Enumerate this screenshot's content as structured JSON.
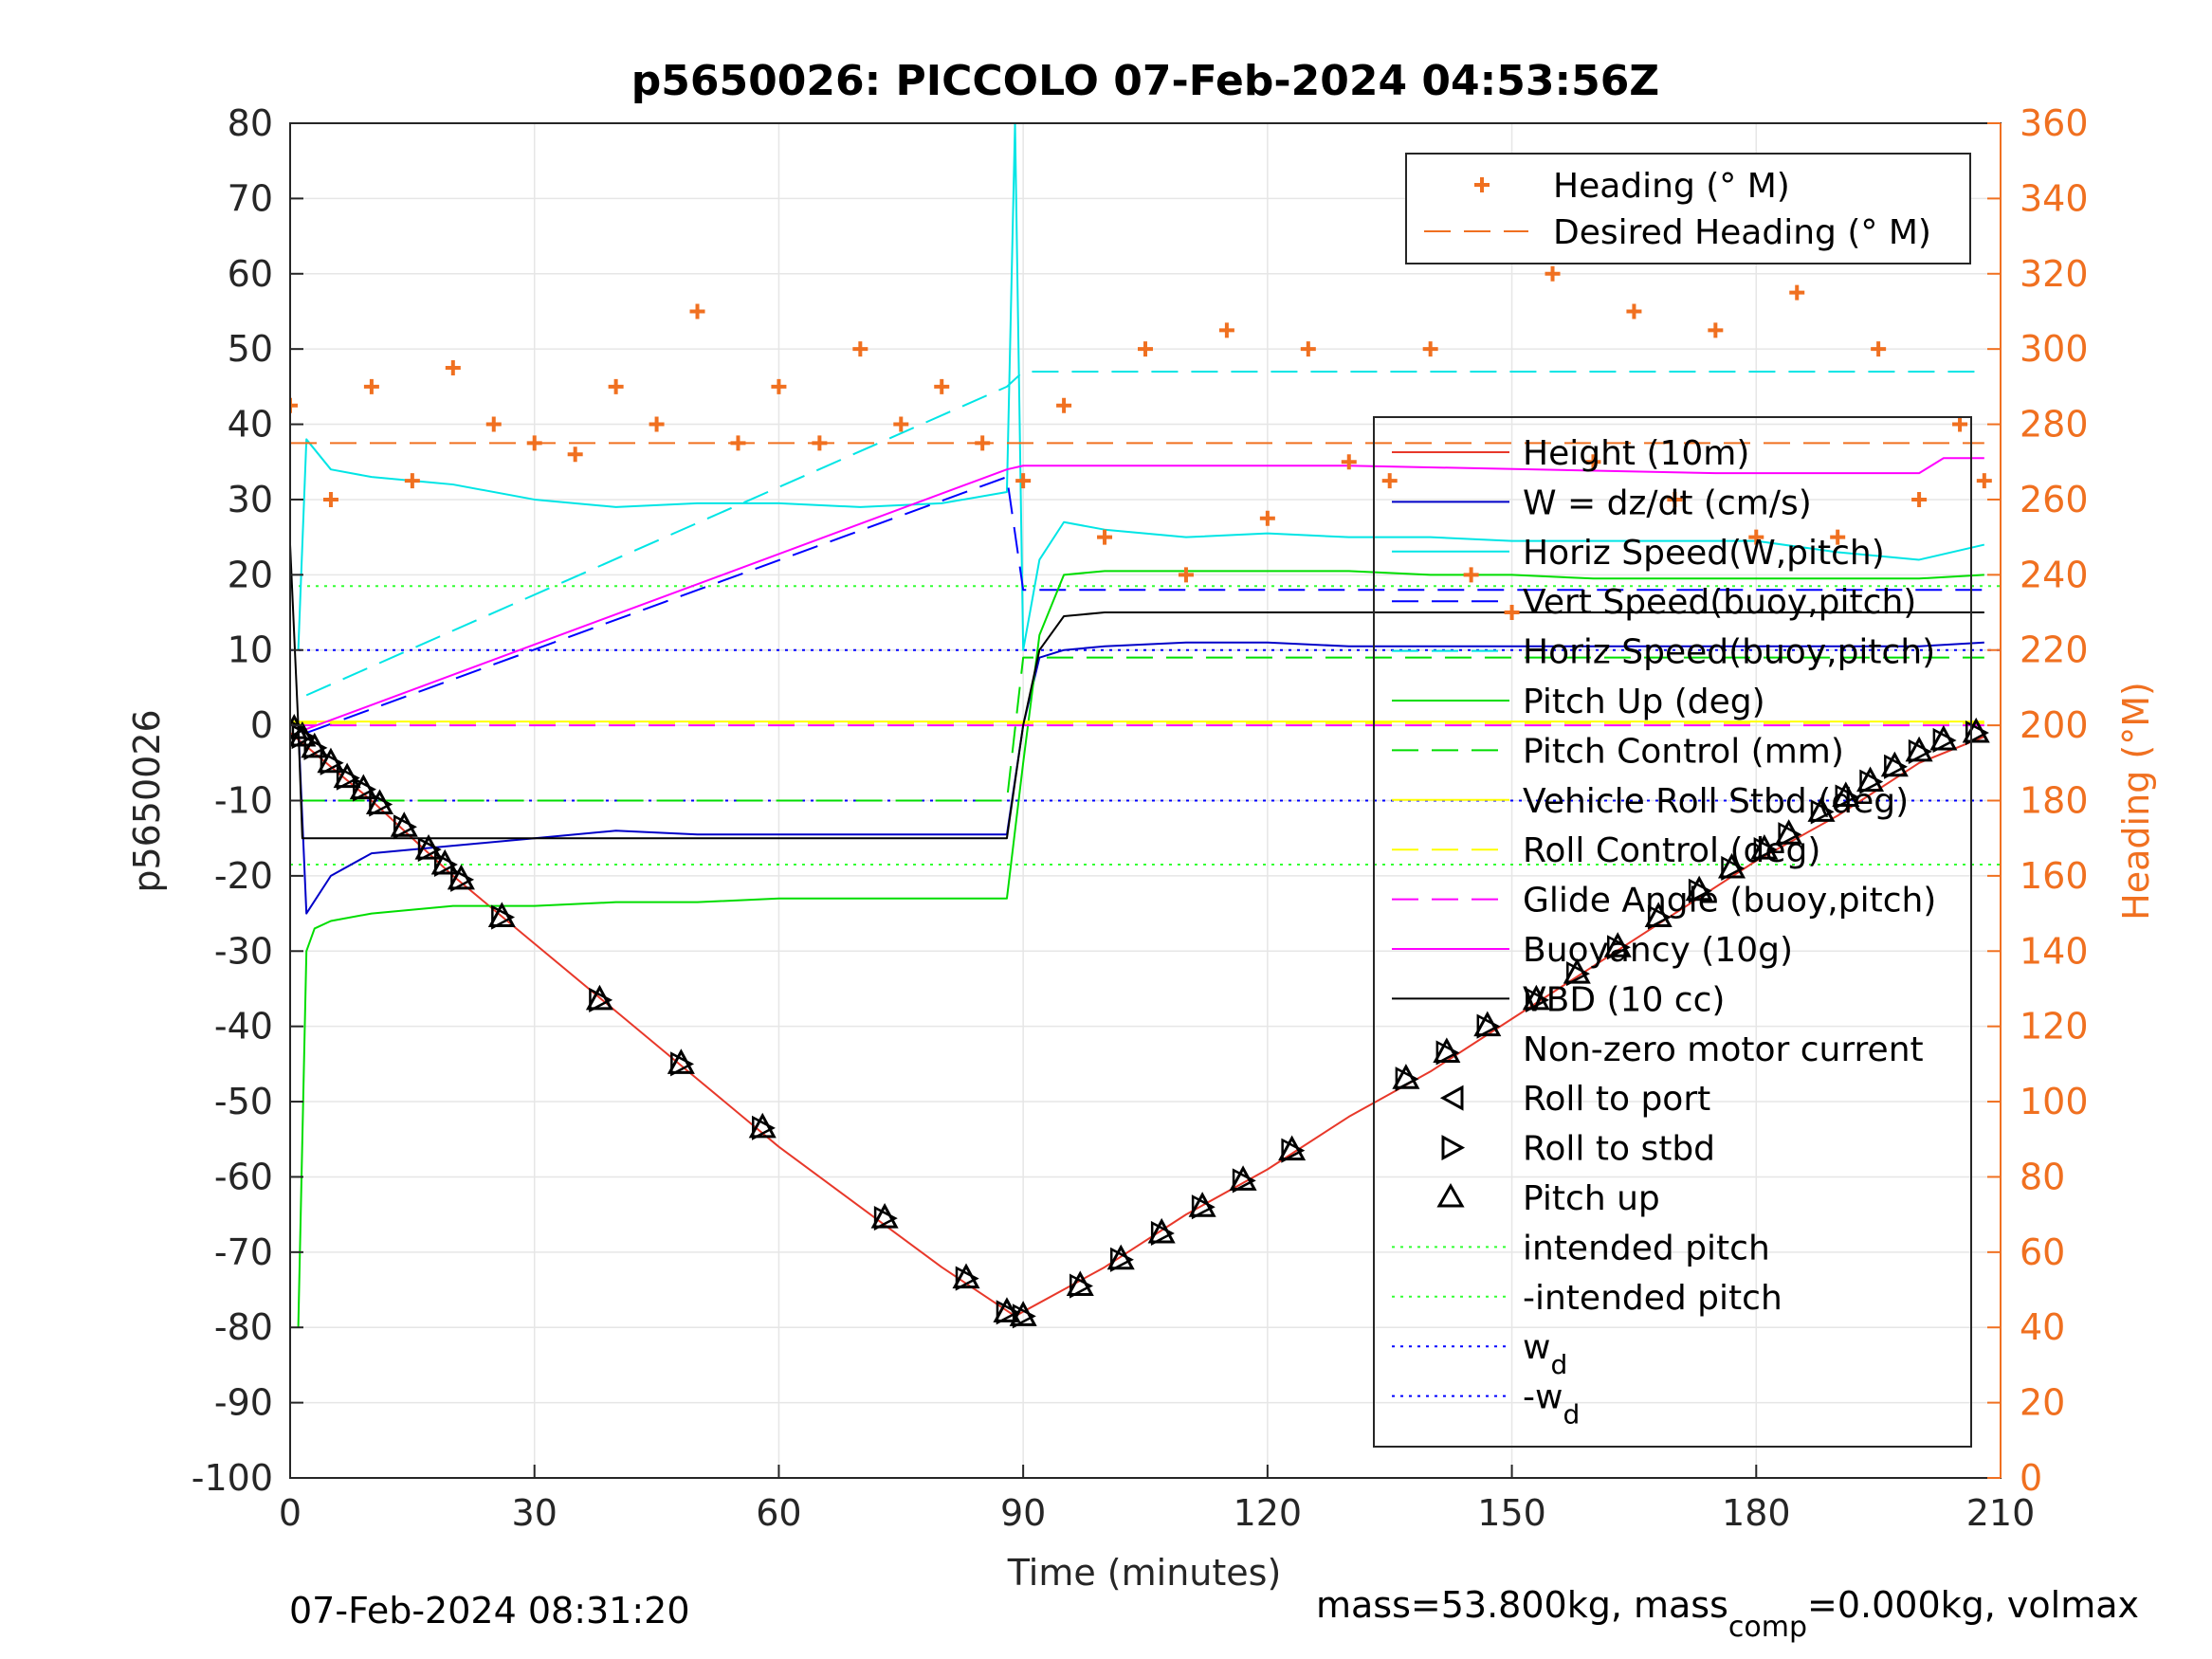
{
  "figure": {
    "timestamp": "07-Feb-2024 08:31:20",
    "mass_text_main": "mass=53.800kg, mass",
    "mass_text_sub": "comp",
    "mass_text_tail": "=0.000kg, volmax"
  },
  "colors": {
    "height": "#e8382a",
    "w": "#0000c8",
    "hspeed": "#00e5e5",
    "vert_speed": "#0000ff",
    "pitch": "#00dd00",
    "roll": "#ffff00",
    "glide": "#ff00ff",
    "buoyancy": "#ff00ff",
    "vbd": "#000000",
    "heading": "#f07020",
    "wd": "#0000ff",
    "intended": "#33ff33"
  },
  "chart_data": {
    "type": "line",
    "title": "p5650026: PICCOLO 07-Feb-2024 04:53:56Z",
    "xlabel": "Time (minutes)",
    "ylabel": "p5650026",
    "ylabel_right": "Heading (°M)",
    "xlim": [
      0,
      210
    ],
    "ylim": [
      -100,
      80
    ],
    "ylim_right": [
      0,
      360
    ],
    "xticks": [
      0,
      30,
      60,
      90,
      120,
      150,
      180,
      210
    ],
    "yticks": [
      -100,
      -90,
      -80,
      -70,
      -60,
      -50,
      -40,
      -30,
      -20,
      -10,
      0,
      10,
      20,
      30,
      40,
      50,
      60,
      70,
      80
    ],
    "yticks_right": [
      0,
      20,
      40,
      60,
      80,
      100,
      120,
      140,
      160,
      180,
      200,
      220,
      240,
      260,
      280,
      300,
      320,
      340,
      360
    ],
    "grid": true,
    "legend_heading": [
      "Heading (° M)",
      "Desired Heading (° M)"
    ],
    "legend_main": [
      "Height (10m)",
      "W = dz/dt (cm/s)",
      "Horiz Speed(W,pitch)",
      "Vert Speed(buoy,pitch)",
      "Horiz Speed(buoy,pitch)",
      "Pitch Up (deg)",
      "Pitch Control (mm)",
      "Vehicle Roll Stbd (deg)",
      "Roll Control (deg)",
      "Glide Angle (buoy,pitch)",
      "Buoyancy (10g)",
      "VBD (10 cc)",
      "Non-zero motor current",
      "Roll to port",
      "Roll to stbd",
      "Pitch up",
      "intended pitch",
      "-intended pitch",
      "w",
      "-w"
    ],
    "legend_subscript": "d",
    "series": [
      {
        "name": "Height (10m)",
        "x": [
          0,
          10,
          20,
          30,
          40,
          50,
          60,
          70,
          80,
          89,
          100,
          110,
          120,
          130,
          140,
          150,
          160,
          170,
          180,
          190,
          200,
          208
        ],
        "y": [
          -1,
          -10,
          -20,
          -29,
          -38,
          -47,
          -56,
          -64,
          -72,
          -78.5,
          -72,
          -65,
          -59,
          -52,
          -46,
          -39,
          -32,
          -25,
          -18,
          -12,
          -5,
          -1.5
        ]
      },
      {
        "name": "W = dz/dt (cm/s)",
        "x": [
          1,
          2,
          5,
          10,
          20,
          30,
          40,
          50,
          60,
          70,
          80,
          88,
          90,
          92,
          95,
          100,
          110,
          120,
          130,
          140,
          150,
          160,
          170,
          180,
          190,
          200,
          208
        ],
        "y": [
          0,
          -25,
          -20,
          -17,
          -16,
          -15,
          -14,
          -14.5,
          -14.5,
          -14.5,
          -14.5,
          -14.5,
          0,
          9,
          10,
          10.5,
          11,
          11,
          10.5,
          10.5,
          10.5,
          10.5,
          10.5,
          10.5,
          10.5,
          10.5,
          11
        ]
      },
      {
        "name": "Horiz Speed(W,pitch)",
        "x": [
          1,
          2,
          5,
          10,
          20,
          30,
          40,
          50,
          60,
          70,
          80,
          88,
          89,
          90,
          92,
          95,
          100,
          110,
          120,
          130,
          140,
          150,
          160,
          170,
          180,
          190,
          200,
          208
        ],
        "y": [
          10,
          38,
          34,
          33,
          32,
          30,
          29,
          29.5,
          29.5,
          29,
          29.5,
          31,
          80,
          10,
          22,
          27,
          26,
          25,
          25.5,
          25,
          25,
          24.5,
          24.5,
          24.5,
          24.5,
          23,
          22,
          24
        ]
      },
      {
        "name": "Vert Speed(buoy,pitch)",
        "x": [
          2,
          88,
          90,
          208
        ],
        "y": [
          -1,
          33,
          18,
          18
        ]
      },
      {
        "name": "Horiz Speed(buoy,pitch)",
        "x": [
          2,
          88,
          90,
          208
        ],
        "y": [
          4,
          45,
          47,
          47
        ]
      },
      {
        "name": "Pitch Up (deg)",
        "x": [
          1,
          2,
          3,
          5,
          10,
          20,
          30,
          40,
          50,
          60,
          70,
          80,
          88,
          90,
          92,
          95,
          100,
          110,
          120,
          130,
          140,
          150,
          160,
          170,
          180,
          190,
          200,
          208
        ],
        "y": [
          -80,
          -30,
          -27,
          -26,
          -25,
          -24,
          -24,
          -23.5,
          -23.5,
          -23,
          -23,
          -23,
          -23,
          -5,
          12,
          20,
          20.5,
          20.5,
          20.5,
          20.5,
          20,
          20,
          19.5,
          19.5,
          19.5,
          19.5,
          19.5,
          20
        ]
      },
      {
        "name": "Pitch Control (mm)",
        "x": [
          1,
          88,
          90,
          208
        ],
        "y": [
          -10,
          -10,
          9,
          9
        ]
      },
      {
        "name": "Vehicle Roll Stbd (deg)",
        "x": [
          0,
          208
        ],
        "y": [
          0.5,
          0.5
        ]
      },
      {
        "name": "Roll Control (deg)",
        "x": [
          0,
          208
        ],
        "y": [
          0.3,
          0.3
        ]
      },
      {
        "name": "Glide Angle (buoy,pitch)",
        "x": [
          0,
          208
        ],
        "y": [
          0,
          0
        ]
      },
      {
        "name": "Buoyancy (10g)",
        "x": [
          2,
          88,
          90,
          130,
          175,
          200,
          203,
          208
        ],
        "y": [
          -0.5,
          34,
          34.5,
          34.5,
          33.5,
          33.5,
          35.5,
          35.5
        ]
      },
      {
        "name": "VBD (10 cc)",
        "x": [
          0,
          1,
          1.5,
          2,
          88,
          90,
          92,
          95,
          100,
          208
        ],
        "y": [
          24,
          0,
          -15,
          -15,
          -15,
          0,
          10,
          14.5,
          15,
          15
        ]
      },
      {
        "name": "Heading (° M)",
        "axis": "right",
        "x": [
          0,
          5,
          10,
          15,
          20,
          25,
          30,
          35,
          40,
          45,
          50,
          55,
          60,
          65,
          70,
          75,
          80,
          85,
          90,
          95,
          100,
          105,
          110,
          115,
          120,
          125,
          130,
          135,
          140,
          145,
          150,
          155,
          160,
          165,
          170,
          175,
          180,
          185,
          190,
          195,
          200,
          205,
          208
        ],
        "y": [
          285,
          260,
          290,
          265,
          295,
          280,
          275,
          272,
          290,
          280,
          310,
          275,
          290,
          275,
          300,
          280,
          290,
          275,
          265,
          285,
          250,
          300,
          240,
          305,
          255,
          300,
          270,
          265,
          300,
          240,
          230,
          320,
          270,
          310,
          260,
          305,
          250,
          315,
          250,
          300,
          260,
          280,
          265
        ]
      },
      {
        "name": "Desired Heading (° M)",
        "axis": "right",
        "x": [
          0,
          208
        ],
        "y": [
          275,
          275
        ]
      }
    ],
    "markers": {
      "time": [
        0.5,
        1.5,
        3,
        5,
        7,
        9,
        11,
        14,
        17,
        19,
        21,
        26,
        38,
        48,
        58,
        73,
        83,
        88,
        90,
        97,
        102,
        107,
        112,
        117,
        123,
        137,
        142,
        147,
        153,
        158,
        163,
        168,
        173,
        177,
        181,
        184,
        188,
        191,
        194,
        197,
        200,
        203,
        207
      ],
      "height": [
        -0.5,
        -1.5,
        -3,
        -5,
        -7,
        -8.5,
        -10.5,
        -13.5,
        -16.5,
        -18.5,
        -20.5,
        -25.5,
        -36.5,
        -45,
        -53.5,
        -65.5,
        -73.5,
        -78,
        -78.5,
        -74.5,
        -71,
        -67.5,
        -64,
        -60.5,
        -56.5,
        -47,
        -43.5,
        -40,
        -36.5,
        -33,
        -29.5,
        -25.5,
        -22,
        -19,
        -16.5,
        -14.5,
        -11.5,
        -9.5,
        -7.5,
        -5.5,
        -3.5,
        -2,
        -1
      ]
    }
  }
}
